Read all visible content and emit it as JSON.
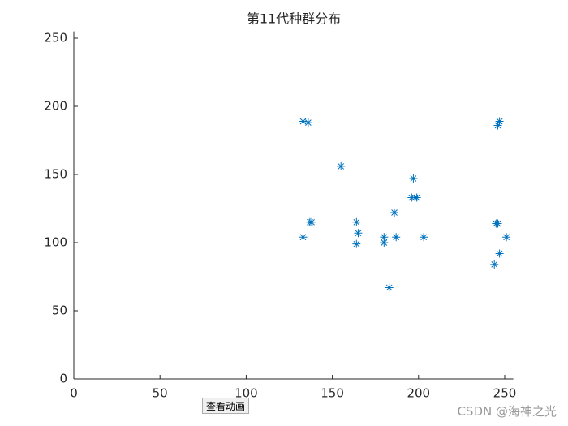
{
  "chart_data": {
    "type": "scatter",
    "title": "第11代种群分布",
    "x": [
      133,
      136,
      155,
      137,
      138,
      133,
      164,
      165,
      164,
      180,
      180,
      186,
      187,
      183,
      197,
      196,
      198,
      199,
      203,
      246,
      247,
      245,
      246,
      247,
      251,
      244
    ],
    "values": [
      189,
      188,
      156,
      115,
      115,
      104,
      115,
      107,
      99,
      104,
      100,
      122,
      104,
      67,
      147,
      133,
      133,
      133,
      104,
      186,
      189,
      114,
      114,
      92,
      104,
      84
    ],
    "color": "#0072bd",
    "marker": "*",
    "xlim": [
      0,
      255
    ],
    "ylim": [
      0,
      255
    ],
    "xticks": [
      0,
      50,
      100,
      150,
      200,
      250
    ],
    "yticks": [
      0,
      50,
      100,
      150,
      200,
      250
    ]
  },
  "button": {
    "label": "查看动画"
  },
  "watermark": "CSDN @海神之光"
}
